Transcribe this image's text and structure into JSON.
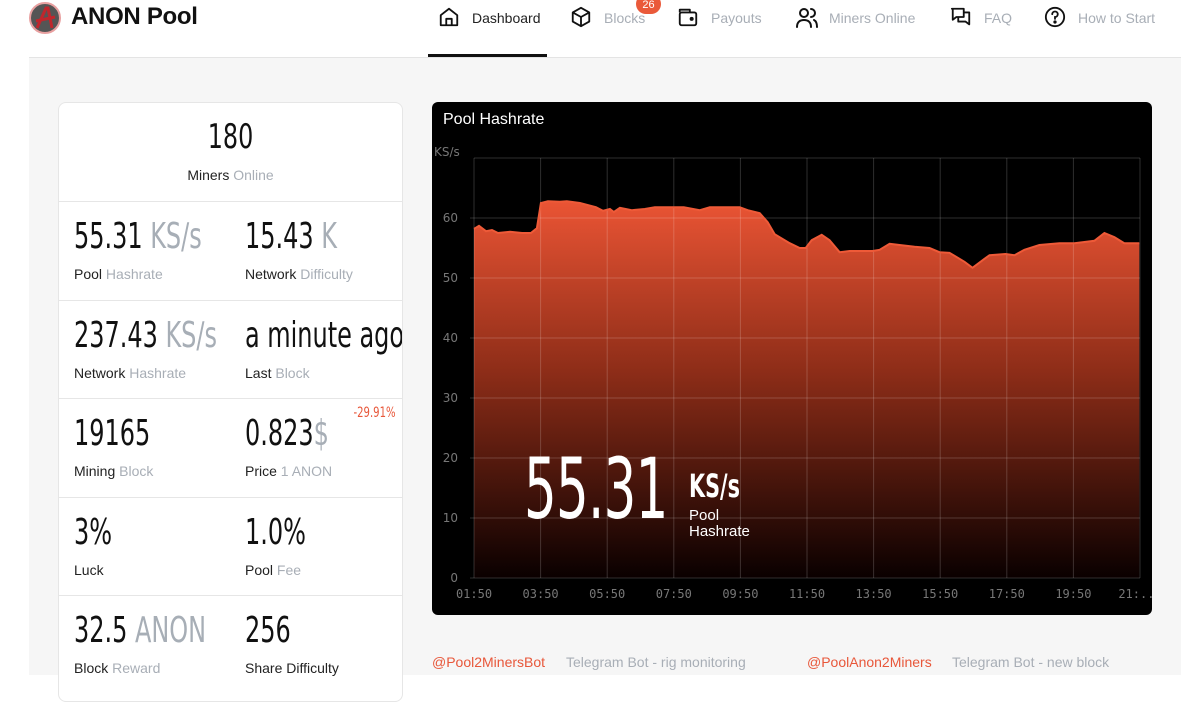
{
  "header": {
    "brand": "ANON Pool",
    "logo_icon": "anon-logo-icon",
    "nav": [
      {
        "label": "Dashboard",
        "icon": "home-icon",
        "active": true
      },
      {
        "label": "Blocks",
        "icon": "cube-icon",
        "active": false,
        "badge": "26"
      },
      {
        "label": "Payouts",
        "icon": "wallet-icon",
        "active": false
      },
      {
        "label": "Miners Online",
        "icon": "users-icon",
        "active": false
      },
      {
        "label": "FAQ",
        "icon": "chat-icon",
        "active": false
      },
      {
        "label": "How to Start",
        "icon": "question-circle-icon",
        "active": false
      }
    ]
  },
  "stats": {
    "miners_online": {
      "value": "180",
      "label_main": "Miners",
      "label_muted": "Online"
    },
    "rows": [
      {
        "left": {
          "value": "55.31",
          "unit": "KS/s",
          "label_main": "Pool",
          "label_muted": "Hashrate"
        },
        "right": {
          "value": "15.43",
          "unit": "K",
          "label_main": "Network",
          "label_muted": "Difficulty"
        }
      },
      {
        "left": {
          "value": "237.43",
          "unit": "KS/s",
          "label_main": "Network",
          "label_muted": "Hashrate"
        },
        "right": {
          "value": "a minute ago",
          "unit": "",
          "label_main": "Last",
          "label_muted": "Block"
        }
      },
      {
        "left": {
          "value": "19165",
          "unit": "",
          "label_main": "Mining",
          "label_muted": "Block"
        },
        "right": {
          "value": "0.823",
          "unit": "$",
          "label_main": "Price",
          "label_muted": "1 ANON",
          "change": "-29.91%"
        }
      },
      {
        "left": {
          "value": "3%",
          "unit": "",
          "label_main": "Luck",
          "label_muted": ""
        },
        "right": {
          "value": "1.0%",
          "unit": "",
          "label_main": "Pool",
          "label_muted": "Fee"
        }
      },
      {
        "left": {
          "value": "32.5",
          "unit": "ANON",
          "label_main": "Block",
          "label_muted": "Reward"
        },
        "right": {
          "value": "256",
          "unit": "",
          "label_main": "Share Difficulty",
          "label_muted": ""
        }
      }
    ]
  },
  "chart": {
    "title": "Pool Hashrate",
    "overlay_value": "55.31",
    "overlay_unit": "KS/s",
    "overlay_label_line1": "Pool",
    "overlay_label_line2": "Hashrate",
    "colors": {
      "fill_top": "#ea5434",
      "fill_bottom": "#0a0000",
      "line": "#ee5a38",
      "grid": "#3a3a3a",
      "background": "#000000"
    }
  },
  "chart_data": {
    "type": "area",
    "title": "Pool Hashrate",
    "xlabel": "",
    "ylabel": "KS/s",
    "ylim": [
      0,
      70
    ],
    "yticks": [
      0,
      10,
      20,
      30,
      40,
      50,
      60
    ],
    "xticks": [
      "01:50",
      "03:50",
      "05:50",
      "07:50",
      "09:50",
      "11:50",
      "13:50",
      "15:50",
      "17:50",
      "19:50",
      "21:..."
    ],
    "grid": true,
    "legend": "none",
    "series": [
      {
        "name": "Pool Hashrate",
        "x": [
          0,
          0.15,
          0.36,
          0.54,
          0.72,
          1.08,
          1.44,
          1.71,
          1.89,
          2.01,
          2.22,
          2.58,
          2.79,
          3.18,
          3.66,
          3.87,
          4.08,
          4.2,
          4.38,
          4.74,
          5.13,
          5.43,
          6.0,
          6.3,
          6.78,
          7.08,
          7.98,
          8.22,
          8.58,
          8.82,
          9.03,
          9.48,
          9.78,
          9.96,
          10.14,
          10.44,
          10.68,
          10.98,
          11.28,
          11.97,
          12.18,
          12.48,
          12.78,
          13.23,
          13.68,
          13.98,
          14.28,
          14.73,
          14.97,
          15.33,
          15.48,
          15.96,
          16.23,
          16.53,
          16.98,
          17.58,
          18.03,
          18.63,
          18.93,
          19.23,
          19.53,
          19.98
        ],
        "values": [
          58.2,
          58.7,
          57.8,
          58.0,
          57.5,
          57.7,
          57.5,
          57.5,
          58.3,
          62.5,
          62.8,
          62.7,
          62.8,
          62.5,
          61.8,
          61.2,
          61.5,
          61.0,
          61.7,
          61.3,
          61.5,
          61.8,
          61.8,
          61.8,
          61.3,
          61.8,
          61.8,
          61.3,
          60.8,
          59.3,
          57.3,
          55.8,
          55.0,
          55.0,
          56.3,
          57.2,
          56.3,
          54.3,
          54.5,
          54.5,
          54.7,
          55.7,
          55.5,
          55.2,
          55.0,
          54.3,
          54.2,
          52.7,
          51.7,
          53.2,
          53.8,
          54.0,
          53.8,
          54.7,
          55.5,
          55.8,
          55.8,
          56.2,
          57.5,
          56.8,
          55.8,
          55.8
        ]
      }
    ],
    "x_unit": "hours since 01:50"
  },
  "footer": {
    "links": [
      {
        "handle": "@Pool2MinersBot",
        "desc": "Telegram Bot - rig monitoring"
      },
      {
        "handle": "@PoolAnon2Miners",
        "desc": "Telegram Bot - new block"
      }
    ]
  }
}
